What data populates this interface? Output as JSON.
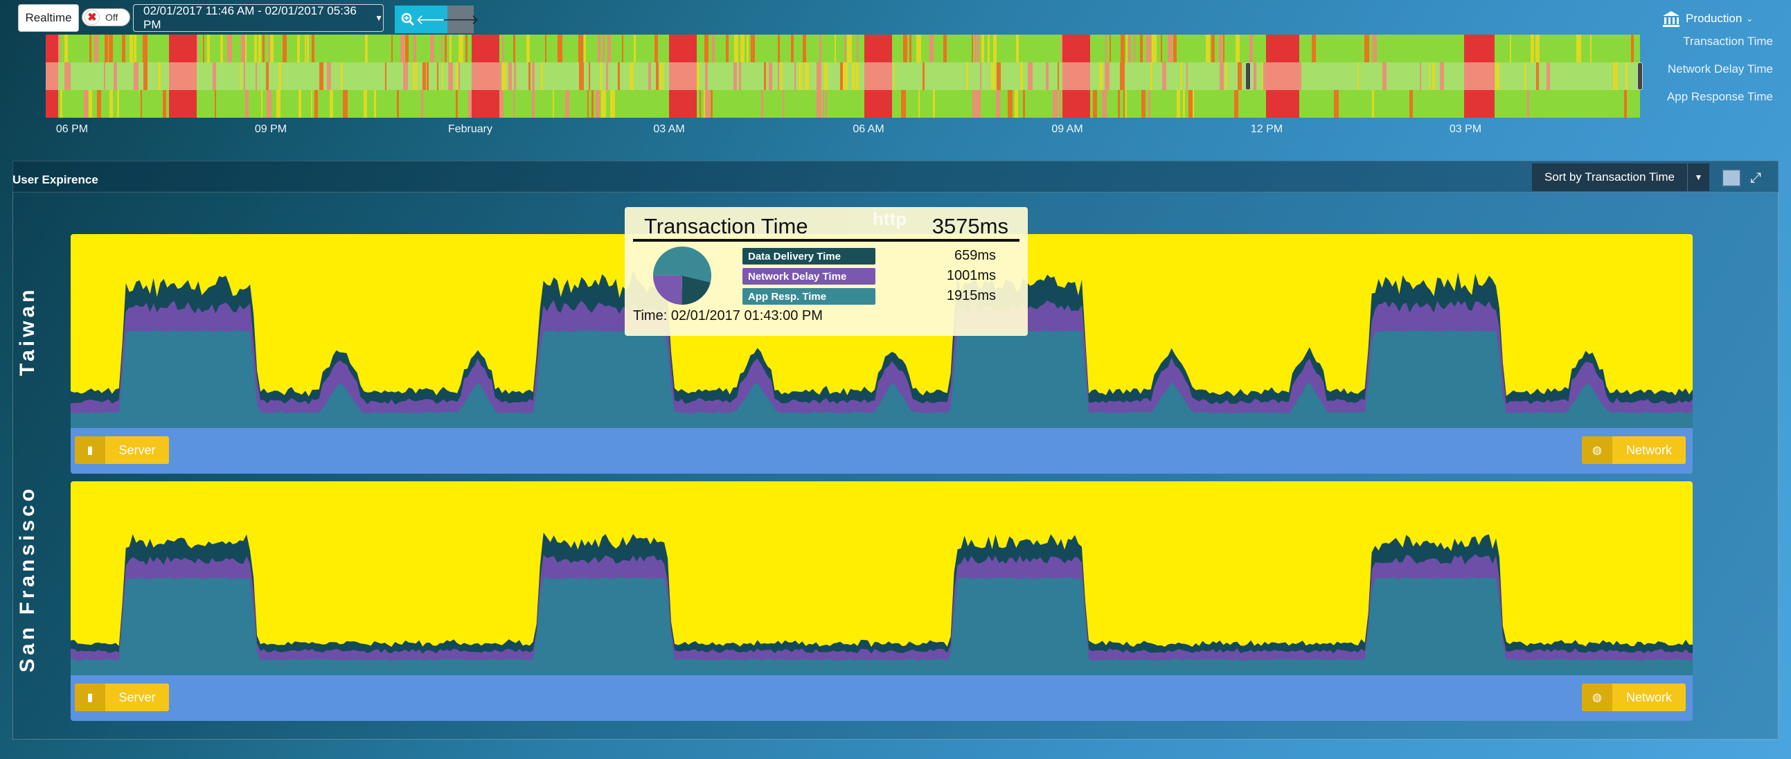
{
  "toolbar": {
    "realtime_label": "Realtime",
    "toggle_state": "Off",
    "date_range": "02/01/2017 11:46 AM - 02/01/2017 05:36 PM",
    "environment": "Production"
  },
  "overview": {
    "lanes": [
      "Transaction Time",
      "Network Delay Time",
      "App Response Time"
    ],
    "time_ticks": [
      "06 PM",
      "09 PM",
      "February",
      "03 AM",
      "06 AM",
      "09 AM",
      "12 PM",
      "03 PM"
    ]
  },
  "panel": {
    "title": "User Expirence",
    "sort_label": "Sort by Transaction Time"
  },
  "regions": [
    {
      "name": "Taiwan",
      "server_label": "Server",
      "network_label": "Network"
    },
    {
      "name": "San Fransisco",
      "server_label": "Server",
      "network_label": "Network"
    }
  ],
  "tooltip": {
    "title": "Transaction Time",
    "total": "3575ms",
    "watermark": "http",
    "items": [
      {
        "label": "Data Delivery Time",
        "value": "659ms",
        "color": "#1b4f58"
      },
      {
        "label": "Network Delay Time",
        "value": "1001ms",
        "color": "#7a58b0"
      },
      {
        "label": "App Resp. Time",
        "value": "1915ms",
        "color": "#3a8a96"
      }
    ],
    "time_text": "Time: 02/01/2017 01:43:00 PM"
  },
  "colors": {
    "good": "#8bd83a",
    "warn": "#e8d820",
    "bad": "#e23434",
    "soft_bad": "#f08b7a",
    "chart_bg": "#ffee00",
    "app_resp": "#2f7d96",
    "net_delay": "#6d4fa8",
    "data_delivery": "#14495a"
  }
}
